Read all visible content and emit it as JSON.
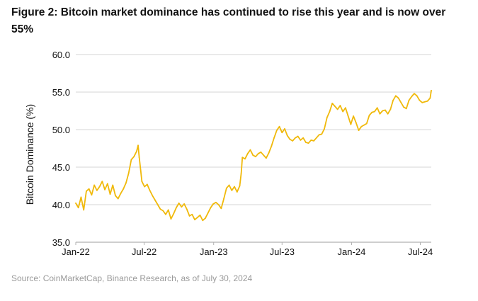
{
  "figure": {
    "title": "Figure 2: Bitcoin market dominance has continued to rise this year and is now over 55%",
    "source": "Source: CoinMarketCap, Binance Research, as of July 30, 2024"
  },
  "colors": {
    "line": "#f0b90b",
    "grid": "#d4d4d4",
    "axis": "#b0b0b0",
    "text": "#111111",
    "source_text": "#9a9a9a"
  },
  "chart_data": {
    "type": "line",
    "title": "Figure 2: Bitcoin market dominance has continued to rise this year and is now over 55%",
    "xlabel": "",
    "ylabel": "Bitcoin Dominance (%)",
    "ylim": [
      35,
      60
    ],
    "xlim": [
      "2022-01-01",
      "2024-07-30"
    ],
    "yticks": [
      "35.0",
      "40.0",
      "45.0",
      "50.0",
      "55.0",
      "60.0"
    ],
    "xticks": [
      {
        "date": "2022-01-01",
        "label": "Jan-22"
      },
      {
        "date": "2022-07-01",
        "label": "Jul-22"
      },
      {
        "date": "2023-01-01",
        "label": "Jan-23"
      },
      {
        "date": "2023-07-01",
        "label": "Jul-23"
      },
      {
        "date": "2024-01-01",
        "label": "Jan-24"
      },
      {
        "date": "2024-07-01",
        "label": "Jul-24"
      }
    ],
    "grid": true,
    "legend": "none",
    "series": [
      {
        "x": [
          "2022-01-01",
          "2022-01-08",
          "2022-01-15",
          "2022-01-22",
          "2022-01-29",
          "2022-02-05",
          "2022-02-12",
          "2022-02-19",
          "2022-02-26",
          "2022-03-05",
          "2022-03-12",
          "2022-03-19",
          "2022-03-26",
          "2022-04-02",
          "2022-04-09",
          "2022-04-16",
          "2022-04-23",
          "2022-04-30",
          "2022-05-07",
          "2022-05-14",
          "2022-05-21",
          "2022-05-28",
          "2022-06-04",
          "2022-06-11",
          "2022-06-15",
          "2022-06-18",
          "2022-06-22",
          "2022-06-25",
          "2022-07-02",
          "2022-07-09",
          "2022-07-16",
          "2022-07-23",
          "2022-07-30",
          "2022-08-06",
          "2022-08-13",
          "2022-08-20",
          "2022-08-27",
          "2022-09-03",
          "2022-09-10",
          "2022-09-17",
          "2022-09-24",
          "2022-10-01",
          "2022-10-08",
          "2022-10-15",
          "2022-10-22",
          "2022-10-29",
          "2022-11-05",
          "2022-11-12",
          "2022-11-19",
          "2022-11-26",
          "2022-12-03",
          "2022-12-10",
          "2022-12-17",
          "2022-12-24",
          "2022-12-31",
          "2023-01-07",
          "2023-01-14",
          "2023-01-21",
          "2023-01-28",
          "2023-02-04",
          "2023-02-11",
          "2023-02-18",
          "2023-02-25",
          "2023-03-04",
          "2023-03-11",
          "2023-03-15",
          "2023-03-18",
          "2023-03-25",
          "2023-04-01",
          "2023-04-08",
          "2023-04-15",
          "2023-04-22",
          "2023-04-29",
          "2023-05-06",
          "2023-05-13",
          "2023-05-20",
          "2023-05-27",
          "2023-06-03",
          "2023-06-10",
          "2023-06-17",
          "2023-06-24",
          "2023-07-01",
          "2023-07-08",
          "2023-07-15",
          "2023-07-22",
          "2023-07-29",
          "2023-08-05",
          "2023-08-12",
          "2023-08-19",
          "2023-08-26",
          "2023-09-02",
          "2023-09-09",
          "2023-09-16",
          "2023-09-23",
          "2023-09-30",
          "2023-10-07",
          "2023-10-14",
          "2023-10-21",
          "2023-10-28",
          "2023-11-04",
          "2023-11-11",
          "2023-11-18",
          "2023-11-25",
          "2023-12-02",
          "2023-12-09",
          "2023-12-16",
          "2023-12-23",
          "2023-12-30",
          "2024-01-06",
          "2024-01-13",
          "2024-01-20",
          "2024-01-27",
          "2024-02-03",
          "2024-02-10",
          "2024-02-17",
          "2024-02-24",
          "2024-03-02",
          "2024-03-09",
          "2024-03-16",
          "2024-03-23",
          "2024-03-30",
          "2024-04-06",
          "2024-04-13",
          "2024-04-20",
          "2024-04-27",
          "2024-05-04",
          "2024-05-11",
          "2024-05-18",
          "2024-05-25",
          "2024-06-01",
          "2024-06-08",
          "2024-06-15",
          "2024-06-22",
          "2024-06-29",
          "2024-07-06",
          "2024-07-13",
          "2024-07-20",
          "2024-07-27",
          "2024-07-30"
        ],
        "y": [
          40.2,
          39.6,
          41.0,
          39.3,
          41.8,
          42.1,
          41.3,
          42.6,
          41.9,
          42.4,
          43.1,
          42.0,
          42.8,
          41.4,
          42.6,
          41.2,
          40.8,
          41.5,
          42.1,
          42.9,
          44.2,
          46.0,
          46.4,
          47.1,
          47.9,
          46.3,
          44.5,
          43.1,
          42.4,
          42.7,
          41.9,
          41.2,
          40.6,
          40.0,
          39.4,
          39.2,
          38.7,
          39.3,
          38.1,
          38.8,
          39.6,
          40.2,
          39.7,
          40.1,
          39.4,
          38.5,
          38.7,
          38.0,
          38.3,
          38.6,
          37.9,
          38.2,
          38.9,
          39.6,
          40.1,
          40.3,
          40.0,
          39.5,
          40.8,
          42.2,
          42.6,
          41.9,
          42.4,
          41.7,
          42.5,
          44.2,
          46.3,
          46.1,
          46.8,
          47.3,
          46.6,
          46.4,
          46.8,
          47.0,
          46.6,
          46.2,
          46.9,
          47.8,
          48.9,
          49.9,
          50.4,
          49.6,
          50.1,
          49.2,
          48.7,
          48.5,
          48.9,
          49.1,
          48.6,
          48.9,
          48.3,
          48.2,
          48.6,
          48.5,
          48.9,
          49.3,
          49.4,
          50.1,
          51.6,
          52.4,
          53.5,
          53.1,
          52.7,
          53.2,
          52.4,
          52.9,
          51.8,
          50.7,
          51.8,
          50.9,
          49.9,
          50.4,
          50.6,
          50.8,
          51.9,
          52.3,
          52.4,
          52.9,
          52.1,
          52.5,
          52.6,
          52.1,
          52.7,
          53.9,
          54.5,
          54.2,
          53.6,
          53.0,
          52.8,
          53.9,
          54.4,
          54.8,
          54.5,
          53.9,
          53.6,
          53.7,
          53.8,
          54.2,
          55.2
        ]
      }
    ]
  }
}
